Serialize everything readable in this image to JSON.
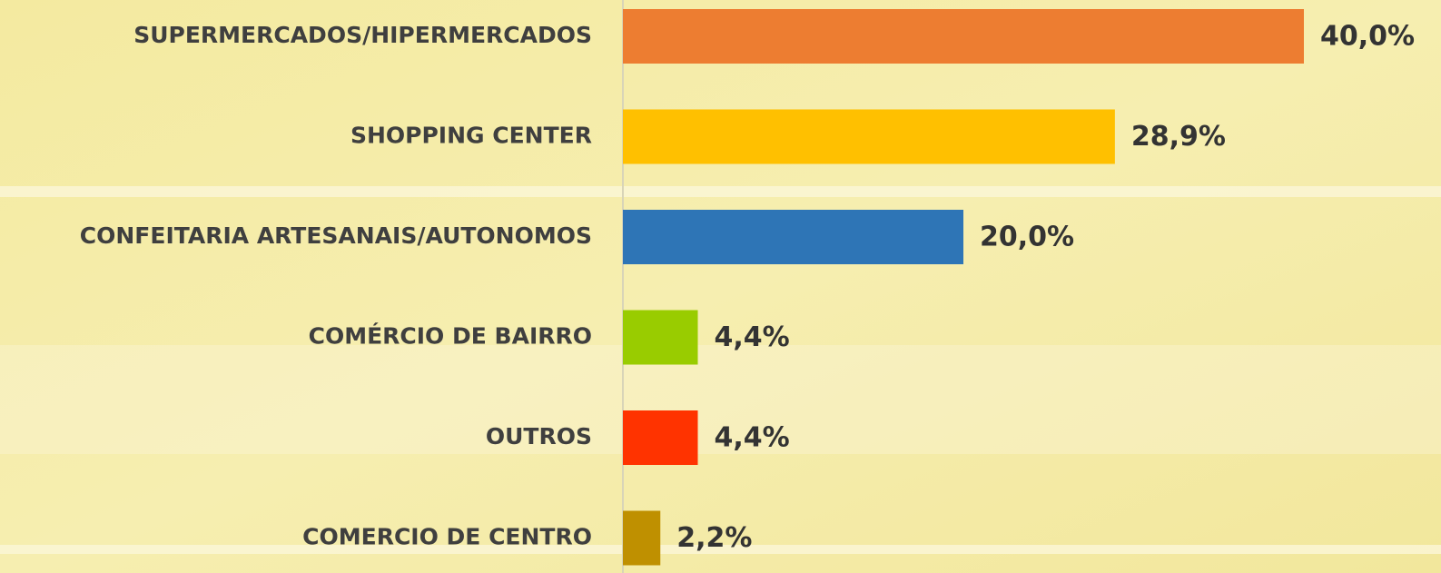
{
  "chart_data": {
    "type": "bar",
    "orientation": "horizontal",
    "categories": [
      "SUPERMERCADOS/HIPERMERCADOS",
      "SHOPPING CENTER",
      "CONFEITARIA ARTESANAIS/AUTONOMOS",
      "COMÉRCIO DE BAIRRO",
      "OUTROS",
      "COMERCIO DE CENTRO"
    ],
    "values": [
      40.0,
      28.9,
      20.0,
      4.4,
      4.4,
      2.2
    ],
    "value_labels": [
      "40,0%",
      "28,9%",
      "20,0%",
      "4,4%",
      "4,4%",
      "2,2%"
    ],
    "colors": [
      "#ed7d31",
      "#ffc000",
      "#2e75b6",
      "#99cc00",
      "#ff3300",
      "#bf9000"
    ]
  }
}
